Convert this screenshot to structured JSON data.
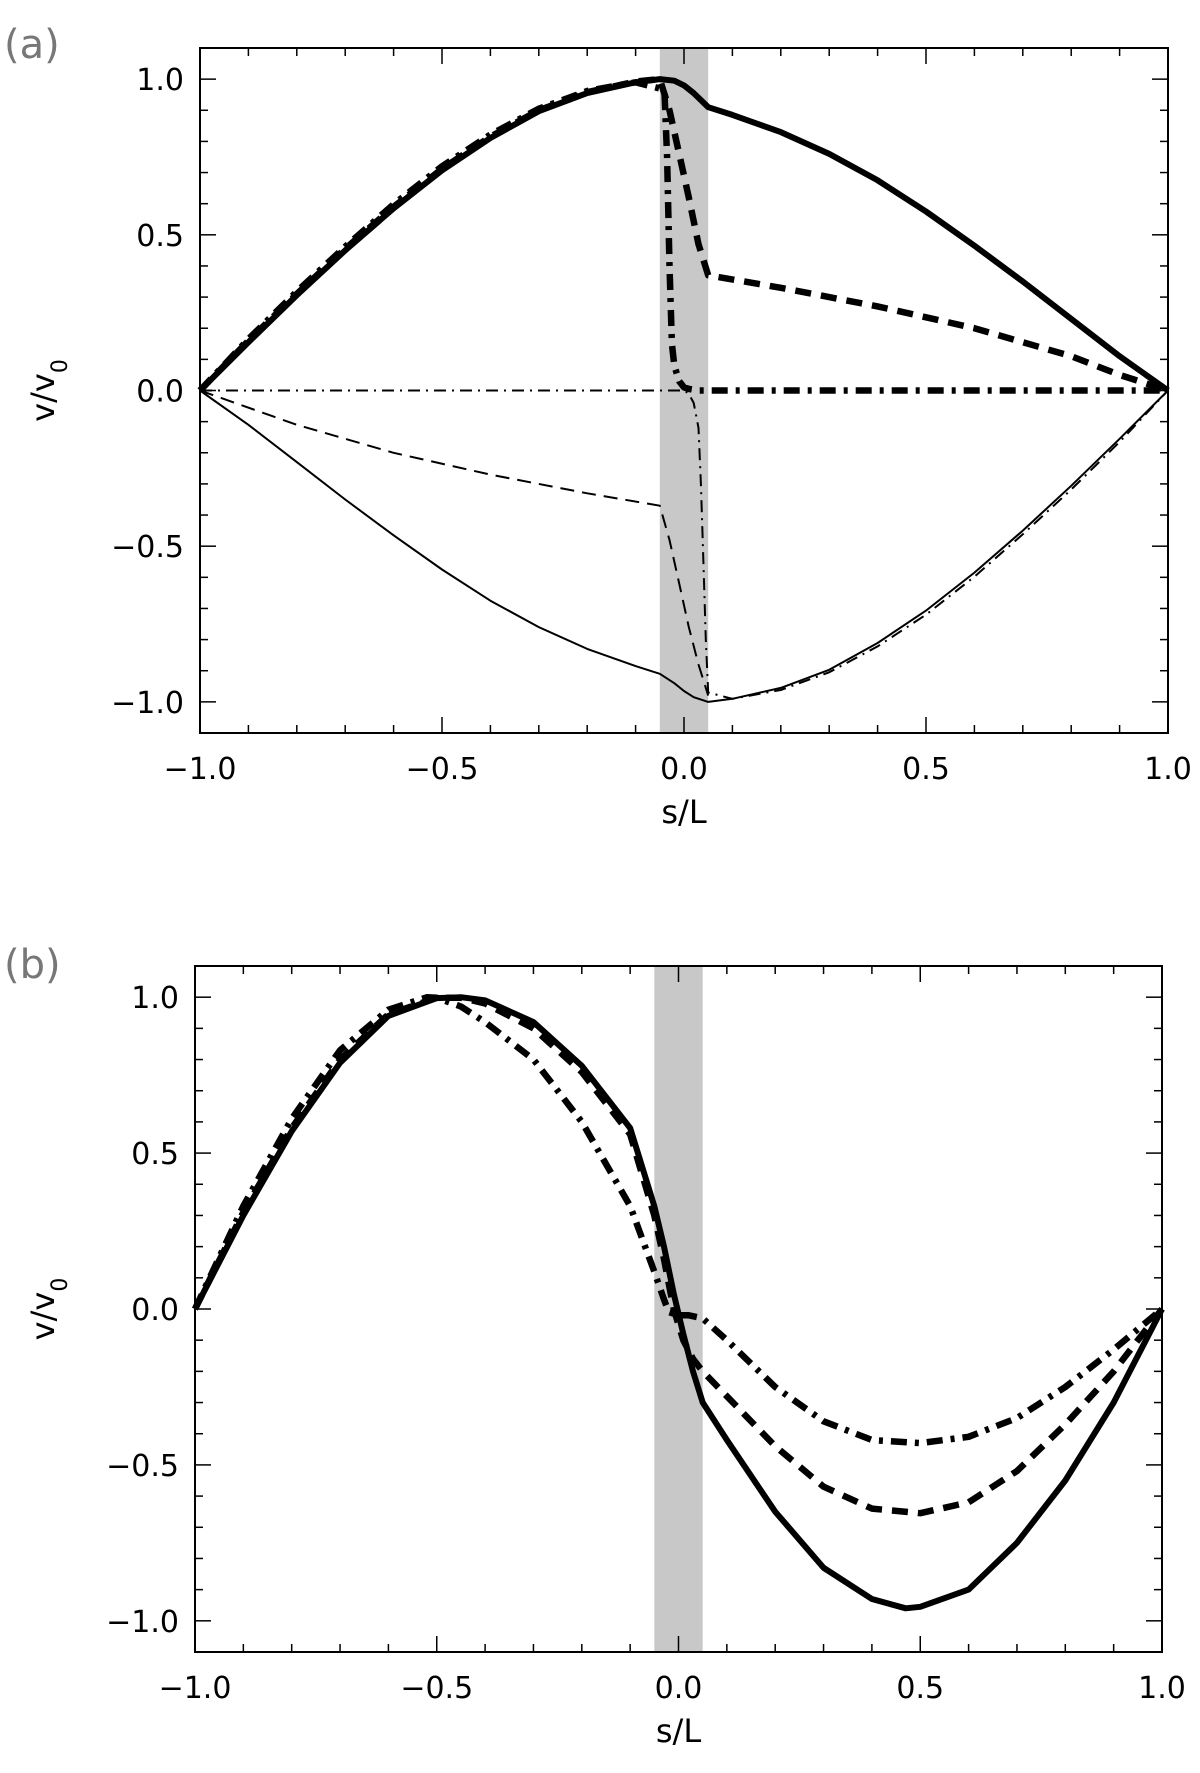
{
  "chart_data": [
    {
      "type": "line",
      "panel_label": "(a)",
      "xlabel": "s/L",
      "ylabel_base": "v/v",
      "ylabel_sub": "0",
      "xlim": [
        -1.0,
        1.0
      ],
      "ylim": [
        -1.1,
        1.1
      ],
      "xticks": [
        -1.0,
        -0.5,
        0.0,
        0.5,
        1.0
      ],
      "xtick_labels": [
        "−1.0",
        "−0.5",
        "0.0",
        "0.5",
        "1.0"
      ],
      "yticks": [
        -1.0,
        -0.5,
        0.0,
        0.5,
        1.0
      ],
      "ytick_labels": [
        "−1.0",
        "−0.5",
        "0.0",
        "0.5",
        "1.0"
      ],
      "shaded_band": [
        -0.05,
        0.05
      ],
      "band_color": "#c8c8c8",
      "series": [
        {
          "style": "solid",
          "weight": "thick",
          "x": [
            -1.0,
            -0.9,
            -0.8,
            -0.7,
            -0.6,
            -0.5,
            -0.4,
            -0.3,
            -0.2,
            -0.1,
            -0.05,
            -0.02,
            0.0,
            0.02,
            0.05,
            0.1,
            0.2,
            0.3,
            0.4,
            0.5,
            0.6,
            0.7,
            0.8,
            0.9,
            1.0
          ],
          "y": [
            0.0,
            0.155,
            0.306,
            0.45,
            0.585,
            0.707,
            0.811,
            0.897,
            0.955,
            0.99,
            1.0,
            0.995,
            0.98,
            0.955,
            0.91,
            0.885,
            0.83,
            0.76,
            0.675,
            0.575,
            0.465,
            0.35,
            0.23,
            0.11,
            0.0
          ]
        },
        {
          "style": "dashed",
          "weight": "thick",
          "x": [
            -1.0,
            -0.9,
            -0.8,
            -0.7,
            -0.6,
            -0.5,
            -0.4,
            -0.3,
            -0.2,
            -0.1,
            -0.05,
            -0.03,
            -0.01,
            0.01,
            0.03,
            0.05,
            0.2,
            0.4,
            0.6,
            0.8,
            0.9,
            1.0
          ],
          "y": [
            0.0,
            0.16,
            0.31,
            0.455,
            0.59,
            0.712,
            0.815,
            0.9,
            0.958,
            0.992,
            1.0,
            0.9,
            0.76,
            0.62,
            0.47,
            0.37,
            0.33,
            0.27,
            0.2,
            0.11,
            0.05,
            0.0
          ]
        },
        {
          "style": "dashdot",
          "weight": "thick",
          "x": [
            -1.0,
            -0.9,
            -0.8,
            -0.7,
            -0.6,
            -0.5,
            -0.4,
            -0.3,
            -0.2,
            -0.1,
            -0.05,
            -0.04,
            -0.035,
            -0.03,
            -0.025,
            -0.02,
            -0.01,
            0.0,
            0.01,
            0.03,
            0.05,
            0.2,
            0.4,
            0.6,
            0.8,
            1.0
          ],
          "y": [
            0.0,
            0.165,
            0.318,
            0.462,
            0.598,
            0.72,
            0.822,
            0.905,
            0.962,
            0.99,
            0.97,
            0.95,
            0.75,
            0.4,
            0.15,
            0.08,
            0.03,
            0.01,
            0.005,
            0.0,
            0.0,
            0.0,
            0.0,
            0.0,
            0.0,
            0.0
          ]
        },
        {
          "style": "solid",
          "weight": "thin",
          "x": [
            -1.0,
            -0.9,
            -0.8,
            -0.7,
            -0.6,
            -0.5,
            -0.4,
            -0.3,
            -0.2,
            -0.1,
            -0.05,
            -0.02,
            0.0,
            0.02,
            0.05,
            0.1,
            0.2,
            0.3,
            0.4,
            0.5,
            0.6,
            0.7,
            0.8,
            0.9,
            1.0
          ],
          "y": [
            0.0,
            -0.11,
            -0.23,
            -0.35,
            -0.465,
            -0.575,
            -0.675,
            -0.76,
            -0.83,
            -0.885,
            -0.91,
            -0.94,
            -0.965,
            -0.985,
            -1.0,
            -0.99,
            -0.955,
            -0.897,
            -0.811,
            -0.707,
            -0.585,
            -0.45,
            -0.306,
            -0.155,
            0.0
          ]
        },
        {
          "style": "dashed",
          "weight": "thin",
          "x": [
            -1.0,
            -0.8,
            -0.6,
            -0.4,
            -0.2,
            -0.05,
            -0.03,
            -0.01,
            0.01,
            0.03,
            0.05
          ],
          "y": [
            0.0,
            -0.11,
            -0.2,
            -0.27,
            -0.33,
            -0.37,
            -0.48,
            -0.62,
            -0.76,
            -0.88,
            -0.98
          ]
        },
        {
          "style": "dashdot",
          "weight": "thin",
          "x": [
            -1.0,
            -0.8,
            -0.6,
            -0.4,
            -0.2,
            -0.05,
            0.0,
            0.01,
            0.02,
            0.03,
            0.035,
            0.04,
            0.045,
            0.05,
            0.1,
            0.2,
            0.3,
            0.4,
            0.5,
            0.6,
            0.7,
            0.8,
            0.9,
            1.0
          ],
          "y": [
            0.0,
            0.0,
            0.0,
            0.0,
            0.0,
            0.0,
            0.0,
            -0.01,
            -0.04,
            -0.12,
            -0.3,
            -0.55,
            -0.8,
            -0.97,
            -0.99,
            -0.962,
            -0.905,
            -0.822,
            -0.72,
            -0.598,
            -0.462,
            -0.318,
            -0.165,
            0.0
          ]
        }
      ]
    },
    {
      "type": "line",
      "panel_label": "(b)",
      "xlabel": "s/L",
      "ylabel_base": "v/v",
      "ylabel_sub": "0",
      "xlim": [
        -1.0,
        1.0
      ],
      "ylim": [
        -1.1,
        1.1
      ],
      "xticks": [
        -1.0,
        -0.5,
        0.0,
        0.5,
        1.0
      ],
      "xtick_labels": [
        "−1.0",
        "−0.5",
        "0.0",
        "0.5",
        "1.0"
      ],
      "yticks": [
        -1.0,
        -0.5,
        0.0,
        0.5,
        1.0
      ],
      "ytick_labels": [
        "−1.0",
        "−0.5",
        "0.0",
        "0.5",
        "1.0"
      ],
      "shaded_band": [
        -0.05,
        0.05
      ],
      "band_color": "#c8c8c8",
      "series": [
        {
          "style": "solid",
          "weight": "thick",
          "x": [
            -1.0,
            -0.9,
            -0.8,
            -0.7,
            -0.6,
            -0.5,
            -0.45,
            -0.4,
            -0.3,
            -0.2,
            -0.1,
            -0.05,
            -0.03,
            -0.01,
            0.01,
            0.03,
            0.05,
            0.1,
            0.2,
            0.3,
            0.4,
            0.47,
            0.5,
            0.6,
            0.7,
            0.8,
            0.9,
            1.0
          ],
          "y": [
            0.0,
            0.3,
            0.57,
            0.79,
            0.94,
            0.997,
            1.0,
            0.99,
            0.92,
            0.78,
            0.58,
            0.33,
            0.2,
            0.05,
            -0.08,
            -0.2,
            -0.3,
            -0.42,
            -0.65,
            -0.83,
            -0.93,
            -0.96,
            -0.955,
            -0.9,
            -0.75,
            -0.55,
            -0.3,
            0.0
          ]
        },
        {
          "style": "dashed",
          "weight": "thick",
          "x": [
            -1.0,
            -0.9,
            -0.8,
            -0.7,
            -0.6,
            -0.5,
            -0.45,
            -0.4,
            -0.3,
            -0.2,
            -0.1,
            -0.05,
            -0.03,
            -0.01,
            0.01,
            0.03,
            0.05,
            0.1,
            0.2,
            0.3,
            0.4,
            0.5,
            0.6,
            0.7,
            0.8,
            0.9,
            1.0
          ],
          "y": [
            0.0,
            0.31,
            0.58,
            0.8,
            0.945,
            0.998,
            0.998,
            0.98,
            0.9,
            0.76,
            0.56,
            0.3,
            0.16,
            0.0,
            -0.1,
            -0.16,
            -0.2,
            -0.28,
            -0.44,
            -0.57,
            -0.64,
            -0.655,
            -0.62,
            -0.52,
            -0.37,
            -0.2,
            0.0
          ]
        },
        {
          "style": "dashdot",
          "weight": "thick",
          "x": [
            -1.0,
            -0.9,
            -0.8,
            -0.7,
            -0.6,
            -0.52,
            -0.5,
            -0.45,
            -0.4,
            -0.3,
            -0.2,
            -0.1,
            -0.05,
            -0.03,
            -0.02,
            0.0,
            0.02,
            0.05,
            0.1,
            0.2,
            0.3,
            0.4,
            0.5,
            0.6,
            0.7,
            0.8,
            0.9,
            1.0
          ],
          "y": [
            0.0,
            0.33,
            0.61,
            0.83,
            0.96,
            1.0,
            0.998,
            0.97,
            0.92,
            0.8,
            0.6,
            0.33,
            0.12,
            0.03,
            -0.01,
            -0.02,
            -0.02,
            -0.03,
            -0.1,
            -0.25,
            -0.36,
            -0.42,
            -0.43,
            -0.41,
            -0.35,
            -0.25,
            -0.13,
            0.0
          ]
        }
      ]
    }
  ]
}
